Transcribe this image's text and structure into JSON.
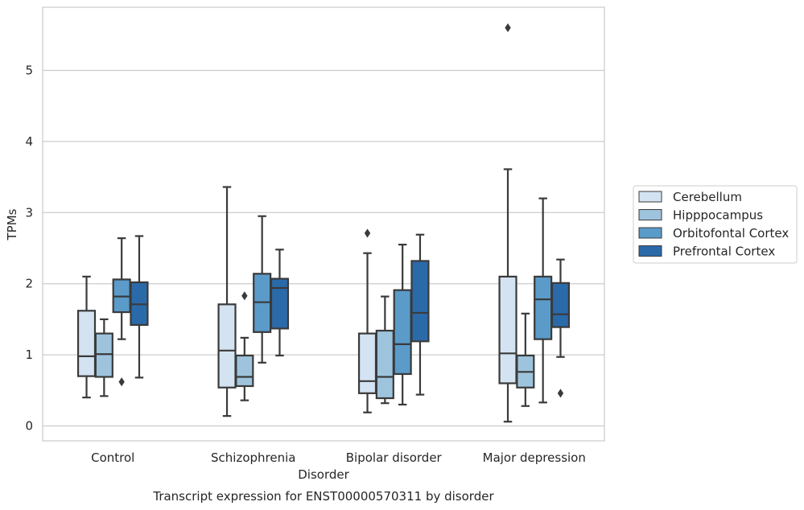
{
  "chart_data": {
    "type": "box",
    "caption": "Transcript expression for ENST00000570311 by disorder",
    "xlabel": "Disorder",
    "ylabel": "TPMs",
    "ylim": [
      -0.2,
      5.9
    ],
    "yticks": [
      0,
      1,
      2,
      3,
      4,
      5
    ],
    "categories": [
      "Control",
      "Schizophrenia",
      "Bipolar disorder",
      "Major depression"
    ],
    "grid": true,
    "legend_position": "right",
    "series": [
      {
        "name": "Cerebellum",
        "color": "#d4e3f2",
        "boxes": [
          {
            "whislo": 0.4,
            "q1": 0.7,
            "med": 0.98,
            "q3": 1.62,
            "whishi": 2.1,
            "fliers": []
          },
          {
            "whislo": 0.14,
            "q1": 0.54,
            "med": 1.06,
            "q3": 1.71,
            "whishi": 3.36,
            "fliers": []
          },
          {
            "whislo": 0.19,
            "q1": 0.46,
            "med": 0.63,
            "q3": 1.3,
            "whishi": 2.43,
            "fliers": [
              2.71
            ]
          },
          {
            "whislo": 0.06,
            "q1": 0.6,
            "med": 1.02,
            "q3": 2.1,
            "whishi": 3.61,
            "fliers": [
              5.6
            ]
          }
        ]
      },
      {
        "name": "Hipppocampus",
        "color": "#9ec4dd",
        "boxes": [
          {
            "whislo": 0.42,
            "q1": 0.69,
            "med": 1.01,
            "q3": 1.3,
            "whishi": 1.5,
            "fliers": []
          },
          {
            "whislo": 0.36,
            "q1": 0.56,
            "med": 0.69,
            "q3": 0.99,
            "whishi": 1.24,
            "fliers": [
              1.83
            ]
          },
          {
            "whislo": 0.32,
            "q1": 0.39,
            "med": 0.69,
            "q3": 1.34,
            "whishi": 1.82,
            "fliers": []
          },
          {
            "whislo": 0.28,
            "q1": 0.54,
            "med": 0.76,
            "q3": 0.99,
            "whishi": 1.58,
            "fliers": []
          }
        ]
      },
      {
        "name": "Orbitofontal Cortex",
        "color": "#5a9bc9",
        "boxes": [
          {
            "whislo": 1.22,
            "q1": 1.6,
            "med": 1.82,
            "q3": 2.06,
            "whishi": 2.64,
            "fliers": [
              0.62
            ]
          },
          {
            "whislo": 0.89,
            "q1": 1.32,
            "med": 1.74,
            "q3": 2.14,
            "whishi": 2.95,
            "fliers": []
          },
          {
            "whislo": 0.3,
            "q1": 0.73,
            "med": 1.15,
            "q3": 1.91,
            "whishi": 2.55,
            "fliers": []
          },
          {
            "whislo": 0.33,
            "q1": 1.22,
            "med": 1.78,
            "q3": 2.1,
            "whishi": 3.2,
            "fliers": []
          }
        ]
      },
      {
        "name": "Prefrontal Cortex",
        "color": "#2b6aa9",
        "boxes": [
          {
            "whislo": 0.68,
            "q1": 1.42,
            "med": 1.71,
            "q3": 2.02,
            "whishi": 2.67,
            "fliers": []
          },
          {
            "whislo": 0.99,
            "q1": 1.37,
            "med": 1.94,
            "q3": 2.07,
            "whishi": 2.48,
            "fliers": []
          },
          {
            "whislo": 0.44,
            "q1": 1.19,
            "med": 1.59,
            "q3": 2.32,
            "whishi": 2.69,
            "fliers": []
          },
          {
            "whislo": 0.97,
            "q1": 1.39,
            "med": 1.57,
            "q3": 2.01,
            "whishi": 2.34,
            "fliers": [
              0.46
            ]
          }
        ]
      }
    ]
  }
}
